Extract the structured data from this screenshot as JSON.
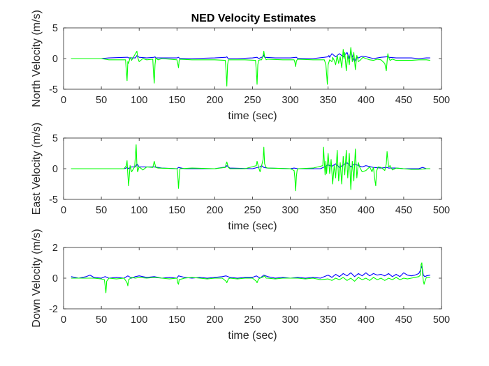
{
  "figure": {
    "title": "NED Velocity Estimates"
  },
  "colors": {
    "series_a": "#0000ff",
    "series_b": "#00ff00",
    "axis": "#262626"
  },
  "chart_data": [
    {
      "type": "line",
      "title": "NED Velocity Estimates",
      "xlabel": "time (sec)",
      "ylabel": "North Velocity (m/s)",
      "xlim": [
        0,
        500
      ],
      "ylim": [
        -5,
        5
      ],
      "xticks": [
        0,
        50,
        100,
        150,
        200,
        250,
        300,
        350,
        400,
        450,
        500
      ],
      "yticks": [
        -5,
        0,
        5
      ],
      "grid": false,
      "series": [
        {
          "color": "#0000ff",
          "x": [
            10,
            50,
            60,
            83,
            84,
            85,
            86,
            90,
            95,
            97,
            100,
            110,
            120,
            121,
            122,
            130,
            150,
            152,
            153,
            154,
            170,
            200,
            215,
            216,
            217,
            218,
            230,
            250,
            256,
            257,
            258,
            264,
            265,
            266,
            280,
            300,
            308,
            309,
            310,
            330,
            345,
            350,
            351,
            352,
            355,
            360,
            365,
            370,
            372,
            375,
            378,
            380,
            382,
            385,
            388,
            390,
            395,
            400,
            410,
            420,
            428,
            429,
            430,
            440,
            450,
            460,
            470,
            480,
            485
          ],
          "y": [
            0,
            0,
            0.1,
            0.2,
            0.2,
            0.2,
            0.1,
            0.1,
            0.1,
            0.5,
            0.2,
            0.1,
            0.2,
            0.3,
            0.1,
            0.1,
            0.1,
            0.2,
            0.1,
            0,
            0,
            0.1,
            0.2,
            0.3,
            0.1,
            0,
            0,
            0.1,
            0.2,
            0.1,
            0,
            0.3,
            0.6,
            0.2,
            0.1,
            0.1,
            0.2,
            0.1,
            0,
            0,
            0.2,
            0.3,
            0.5,
            0.2,
            0.8,
            0.3,
            0.8,
            0.3,
            0.6,
            1,
            0,
            1.2,
            0.4,
            -0.5,
            0.3,
            0.1,
            0.4,
            0.3,
            0,
            0.2,
            0.3,
            0.5,
            0.2,
            0.1,
            0.1,
            0.1,
            0,
            0.1,
            0.1
          ]
        },
        {
          "color": "#00ff00",
          "x": [
            10,
            50,
            60,
            82,
            83,
            84,
            85,
            86,
            88,
            90,
            95,
            97,
            98,
            100,
            105,
            110,
            118,
            119,
            120,
            121,
            122,
            125,
            130,
            150,
            151,
            152,
            153,
            154,
            170,
            200,
            214,
            215,
            216,
            217,
            218,
            220,
            240,
            254,
            255,
            256,
            257,
            258,
            260,
            262,
            264,
            265,
            266,
            268,
            270,
            290,
            305,
            306,
            307,
            308,
            309,
            310,
            330,
            345,
            347,
            348,
            349,
            350,
            352,
            355,
            356,
            358,
            360,
            362,
            364,
            366,
            368,
            370,
            371,
            372,
            374,
            376,
            378,
            380,
            382,
            384,
            386,
            388,
            390,
            393,
            396,
            400,
            405,
            410,
            415,
            420,
            425,
            427,
            428,
            429,
            430,
            432,
            435,
            440,
            450,
            460,
            470,
            480,
            485
          ],
          "y": [
            0,
            0,
            -0.2,
            -0.2,
            -2,
            -3.6,
            -0.5,
            -0.8,
            0.2,
            -0.3,
            0.8,
            1.2,
            0.2,
            -0.5,
            0,
            -0.2,
            -0.1,
            -2.5,
            -4,
            -1,
            0.1,
            -0.2,
            0,
            -0.2,
            -0.8,
            -1.5,
            -0.3,
            -0.1,
            -0.2,
            -0.2,
            -0.3,
            -2,
            -4.5,
            -1,
            -0.2,
            -0.2,
            -0.2,
            -0.3,
            -2,
            -4.2,
            -1,
            -0.3,
            -0.2,
            -0.2,
            0.5,
            1.2,
            0.3,
            -0.2,
            -0.1,
            -0.2,
            -0.2,
            -0.6,
            -1.3,
            -0.4,
            -0.2,
            -0.1,
            -0.2,
            -0.2,
            -1,
            -2.5,
            -4.2,
            -1,
            -0.2,
            -0.5,
            0.2,
            -0.3,
            -1,
            0.5,
            -0.8,
            0.3,
            -1.5,
            1.5,
            0,
            1,
            -2,
            0.5,
            -1,
            1.8,
            -0.5,
            1,
            -1.8,
            0.5,
            -0.5,
            -0.2,
            0.2,
            0,
            -0.2,
            -0.3,
            -0.1,
            -0.2,
            -0.8,
            -2,
            -0.5,
            0.8,
            0.2,
            -0.3,
            -0.1,
            -0.3,
            -0.3,
            -0.3,
            -0.2,
            -0.2,
            -0.3
          ]
        }
      ]
    },
    {
      "type": "line",
      "xlabel": "time (sec)",
      "ylabel": "East Velocity (m/s)",
      "xlim": [
        0,
        500
      ],
      "ylim": [
        -5,
        5
      ],
      "xticks": [
        0,
        50,
        100,
        150,
        200,
        250,
        300,
        350,
        400,
        450,
        500
      ],
      "yticks": [
        -5,
        0,
        5
      ],
      "grid": false,
      "series": [
        {
          "color": "#0000ff",
          "x": [
            10,
            80,
            83,
            84,
            85,
            86,
            88,
            90,
            95,
            97,
            100,
            110,
            120,
            130,
            150,
            152,
            160,
            200,
            215,
            216,
            220,
            250,
            260,
            262,
            265,
            270,
            300,
            305,
            310,
            340,
            345,
            350,
            355,
            360,
            365,
            370,
            375,
            380,
            385,
            390,
            395,
            400,
            410,
            420,
            428,
            430,
            440,
            450,
            460,
            470,
            475,
            480,
            485
          ],
          "y": [
            0,
            0,
            0.1,
            0.3,
            0.1,
            0,
            0.2,
            0.3,
            0.3,
            0.8,
            0.3,
            0.3,
            0.3,
            0.1,
            0,
            0.2,
            0,
            0,
            0.3,
            0.5,
            0.1,
            0,
            0.3,
            0.5,
            0.2,
            0.1,
            0,
            0.1,
            0,
            0,
            0.3,
            0.6,
            0.4,
            0.8,
            0.2,
            0.6,
            1,
            0.3,
            0.8,
            0.5,
            0.3,
            0.5,
            0.2,
            0.1,
            0.2,
            0.1,
            0.1,
            0,
            0,
            0,
            0.2,
            0,
            0
          ]
        },
        {
          "color": "#00ff00",
          "x": [
            10,
            80,
            83,
            84,
            85,
            86,
            88,
            90,
            94,
            95,
            96,
            97,
            98,
            100,
            105,
            110,
            118,
            120,
            122,
            125,
            150,
            151,
            152,
            153,
            154,
            170,
            200,
            214,
            215,
            216,
            218,
            220,
            240,
            255,
            256,
            258,
            260,
            262,
            264,
            265,
            266,
            268,
            270,
            300,
            305,
            306,
            307,
            308,
            309,
            310,
            330,
            343,
            344,
            345,
            346,
            347,
            348,
            350,
            352,
            354,
            356,
            358,
            360,
            362,
            364,
            366,
            368,
            370,
            372,
            374,
            376,
            378,
            380,
            382,
            384,
            386,
            388,
            390,
            392,
            395,
            400,
            405,
            408,
            410,
            412,
            413,
            414,
            416,
            420,
            425,
            427,
            428,
            429,
            430,
            432,
            435,
            440,
            450,
            460,
            470,
            480,
            485
          ],
          "y": [
            0,
            0,
            0.5,
            1.3,
            -1,
            -2.8,
            0.5,
            -0.5,
            0.3,
            2,
            3.9,
            0.5,
            -0.5,
            0.3,
            -0.2,
            0.3,
            0.2,
            1.2,
            0.2,
            0.1,
            0,
            -0.8,
            -3.2,
            -1.5,
            0,
            0.1,
            0,
            0.2,
            0.8,
            1.1,
            0.2,
            0,
            0,
            0.5,
            1.2,
            0.2,
            -0.5,
            0.5,
            1.5,
            3.5,
            0.8,
            0.2,
            0.1,
            0,
            -0.3,
            -1.5,
            -3.6,
            -1.2,
            -0.3,
            0,
            0.1,
            0.5,
            3.5,
            1,
            -1,
            1.2,
            -0.8,
            2.5,
            -0.8,
            1.5,
            -2.5,
            0.5,
            -1.5,
            3,
            -2,
            1,
            -2.5,
            2,
            -1,
            3,
            -1.5,
            2.5,
            -3.4,
            1.2,
            -2,
            3.2,
            -1.5,
            1,
            0.2,
            -0.5,
            -0.3,
            0.3,
            -0.5,
            0.2,
            -2,
            -2.8,
            -0.5,
            0.3,
            0.2,
            -0.3,
            0.8,
            2.8,
            1.5,
            0.3,
            0.5,
            -0.2,
            0.1,
            0,
            -0.1,
            -0.1,
            0,
            0
          ]
        }
      ]
    },
    {
      "type": "line",
      "xlabel": "time (sec)",
      "ylabel": "Down Velocity (m/s)",
      "xlim": [
        0,
        500
      ],
      "ylim": [
        -2,
        2
      ],
      "xticks": [
        0,
        50,
        100,
        150,
        200,
        250,
        300,
        350,
        400,
        450,
        500
      ],
      "yticks": [
        -2,
        0,
        2
      ],
      "grid": false,
      "series": [
        {
          "color": "#0000ff",
          "x": [
            10,
            20,
            30,
            35,
            40,
            50,
            55,
            60,
            70,
            80,
            85,
            90,
            95,
            100,
            110,
            120,
            130,
            140,
            150,
            152,
            160,
            170,
            180,
            190,
            200,
            210,
            215,
            220,
            230,
            240,
            250,
            255,
            260,
            265,
            270,
            280,
            290,
            300,
            310,
            320,
            330,
            340,
            345,
            350,
            355,
            360,
            365,
            370,
            375,
            380,
            385,
            390,
            395,
            400,
            405,
            410,
            415,
            420,
            425,
            430,
            435,
            440,
            445,
            450,
            455,
            460,
            465,
            470,
            472,
            474,
            476,
            478,
            480,
            485
          ],
          "y": [
            0.1,
            0,
            0.1,
            0.2,
            0.05,
            0,
            0.1,
            0,
            0.05,
            0,
            0.15,
            0,
            0.1,
            0.15,
            0.05,
            0.1,
            0,
            0.05,
            0,
            0.15,
            0.05,
            0,
            0.05,
            0,
            0.05,
            0.1,
            0.15,
            0.05,
            0,
            0.05,
            0.05,
            0.15,
            0,
            0.2,
            0.1,
            0,
            0.05,
            0,
            0.05,
            0,
            0.05,
            0,
            0.1,
            0.2,
            0.05,
            0.25,
            0.1,
            0.3,
            0.15,
            0.35,
            0.1,
            0.3,
            0.15,
            0.35,
            0.15,
            0.3,
            0.2,
            0.25,
            0.15,
            0.3,
            0.1,
            0.25,
            0.1,
            0.35,
            0.2,
            0.15,
            0.2,
            0.3,
            0.5,
            0.8,
            0.2,
            0.1,
            0.15,
            0.2
          ]
        },
        {
          "color": "#00ff00",
          "x": [
            10,
            20,
            30,
            40,
            50,
            54,
            55,
            56,
            57,
            60,
            70,
            80,
            84,
            85,
            86,
            90,
            95,
            100,
            110,
            120,
            130,
            140,
            150,
            151,
            152,
            153,
            160,
            170,
            180,
            190,
            200,
            210,
            215,
            216,
            218,
            220,
            230,
            240,
            250,
            255,
            256,
            258,
            260,
            265,
            266,
            268,
            270,
            280,
            290,
            300,
            310,
            320,
            330,
            340,
            350,
            355,
            360,
            365,
            370,
            375,
            380,
            385,
            390,
            395,
            400,
            405,
            410,
            415,
            420,
            425,
            430,
            435,
            440,
            445,
            450,
            455,
            460,
            465,
            470,
            472,
            473,
            474,
            475,
            476,
            477,
            478,
            480,
            485
          ],
          "y": [
            0,
            0,
            0,
            0,
            -0.05,
            -0.1,
            -0.5,
            -0.95,
            -0.2,
            0,
            -0.05,
            0,
            -0.3,
            -0.5,
            -0.1,
            0.05,
            0,
            0.05,
            0,
            0.05,
            0,
            -0.05,
            0,
            -0.3,
            -0.4,
            -0.1,
            0,
            0.05,
            0,
            -0.05,
            0,
            0,
            -0.2,
            -0.3,
            -0.05,
            0,
            -0.05,
            0,
            0,
            -0.2,
            -0.3,
            -0.05,
            0,
            0.1,
            0.15,
            0,
            0,
            -0.05,
            0,
            0,
            0,
            -0.05,
            0,
            -0.1,
            -0.05,
            -0.15,
            0,
            -0.1,
            0.05,
            -0.15,
            0,
            -0.2,
            0.05,
            -0.1,
            0,
            -0.15,
            0.05,
            -0.1,
            0,
            -0.15,
            0,
            -0.1,
            0.05,
            -0.1,
            0,
            -0.05,
            0,
            0.05,
            0.1,
            0.2,
            0.9,
            1.0,
            0.3,
            -0.2,
            -0.4,
            -0.2,
            0.05,
            0.05
          ]
        }
      ]
    }
  ]
}
